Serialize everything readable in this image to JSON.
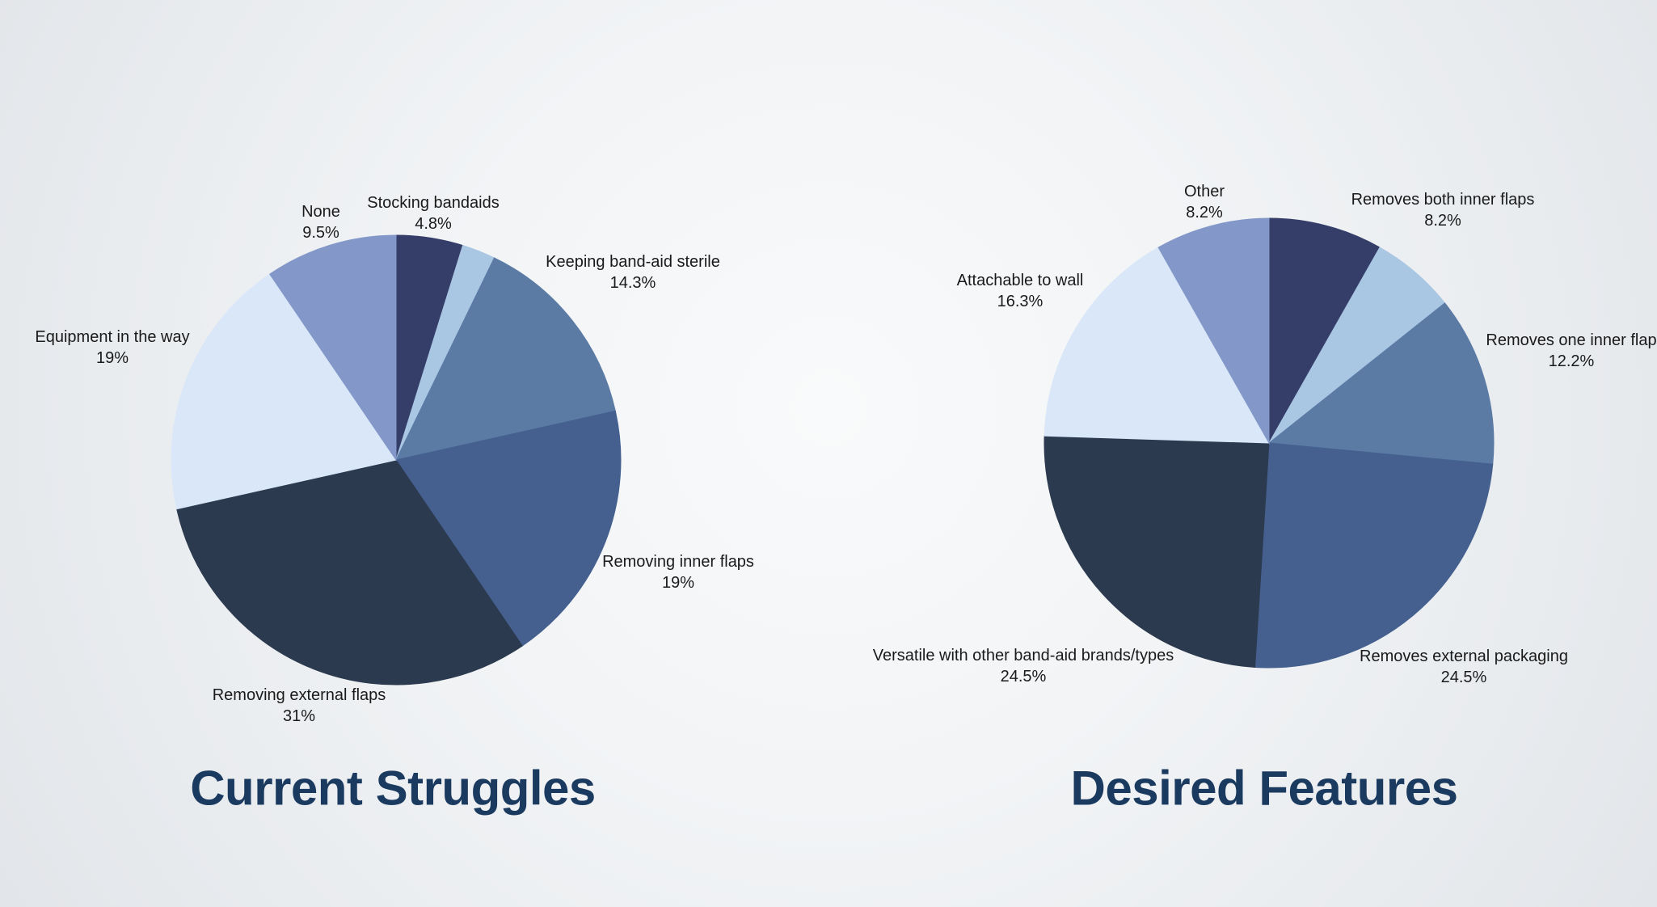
{
  "page": {
    "background": {
      "base_color": "#e8ebee",
      "highlight_color": "#f9fafb"
    }
  },
  "chart_data": [
    {
      "type": "pie",
      "title": "Current Struggles",
      "title_color": "#1b3a5f",
      "legend": "none",
      "label_style": "outside-with-percent",
      "start_angle_deg": 0,
      "direction": "clockwise",
      "slices": [
        {
          "label": "Stocking bandaids",
          "pct_label": "4.8%",
          "value": 4.8,
          "color": "#353d69"
        },
        {
          "label": "",
          "pct_label": "",
          "value": 2.4,
          "color": "#a9c6e3"
        },
        {
          "label": "Keeping band-aid sterile",
          "pct_label": "14.3%",
          "value": 14.3,
          "color": "#5b7ba5"
        },
        {
          "label": "Removing inner flaps",
          "pct_label": "19%",
          "value": 19,
          "color": "#45608f"
        },
        {
          "label": "Removing external flaps",
          "pct_label": "31%",
          "value": 31,
          "color": "#2c3a4f"
        },
        {
          "label": "Equipment in the way",
          "pct_label": "19%",
          "value": 19,
          "color": "#d9e7f8"
        },
        {
          "label": "None",
          "pct_label": "9.5%",
          "value": 9.5,
          "color": "#8398c9"
        }
      ]
    },
    {
      "type": "pie",
      "title": "Desired Features",
      "title_color": "#1b3a5f",
      "legend": "none",
      "label_style": "outside-with-percent",
      "start_angle_deg": 0,
      "direction": "clockwise",
      "slices": [
        {
          "label": "Removes both inner flaps",
          "pct_label": "8.2%",
          "value": 8.2,
          "color": "#353d69"
        },
        {
          "label": "",
          "pct_label": "",
          "value": 6.1,
          "color": "#a9c6e3"
        },
        {
          "label": "Removes one inner flap",
          "pct_label": "12.2%",
          "value": 12.2,
          "color": "#5b7ba5"
        },
        {
          "label": "Removes external packaging",
          "pct_label": "24.5%",
          "value": 24.5,
          "color": "#45608f"
        },
        {
          "label": "Versatile with other band-aid brands/types",
          "pct_label": "24.5%",
          "value": 24.5,
          "color": "#2c3a4f"
        },
        {
          "label": "Attachable to wall",
          "pct_label": "16.3%",
          "value": 16.3,
          "color": "#d9e7f8"
        },
        {
          "label": "Other",
          "pct_label": "8.2%",
          "value": 8.2,
          "color": "#8398c9"
        }
      ]
    }
  ]
}
